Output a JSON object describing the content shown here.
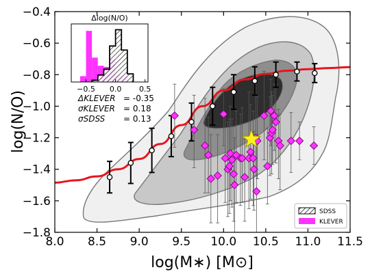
{
  "chart_data": {
    "type": "scatter",
    "xlabel": "log(M∗) [M⊙]",
    "ylabel": "log(N/O)",
    "xlim": [
      8.0,
      11.5
    ],
    "ylim": [
      -1.8,
      -0.4
    ],
    "xticks": [
      "8.0",
      "8.5",
      "9.0",
      "9.5",
      "10.0",
      "10.5",
      "11.0",
      "11.5"
    ],
    "yticks": [
      "−1.8",
      "−1.6",
      "−1.4",
      "−1.2",
      "−1.0",
      "−0.8",
      "−0.6",
      "−0.4"
    ],
    "grid": false,
    "colors": {
      "fit_line": "#e8141c",
      "klever": "#ff33ff",
      "contour_levels": [
        "#f0f0f0",
        "#c8c8c8",
        "#8e8e8e",
        "#2e2e2e"
      ],
      "star": "#ffee22"
    },
    "fit_curve": {
      "name": "",
      "x": [
        8.0,
        8.25,
        8.5,
        8.75,
        9.0,
        9.25,
        9.5,
        9.75,
        10.0,
        10.25,
        10.5,
        10.75,
        11.0,
        11.25,
        11.5
      ],
      "y": [
        -1.485,
        -1.47,
        -1.445,
        -1.4,
        -1.335,
        -1.24,
        -1.12,
        -1.0,
        -0.9,
        -0.83,
        -0.795,
        -0.775,
        -0.765,
        -0.758,
        -0.752
      ]
    },
    "sdss_median": {
      "name": "SDSS",
      "x": [
        8.65,
        8.9,
        9.15,
        9.38,
        9.62,
        9.87,
        10.12,
        10.37,
        10.62,
        10.87,
        11.08
      ],
      "y": [
        -1.45,
        -1.36,
        -1.28,
        -1.19,
        -1.1,
        -1.0,
        -0.91,
        -0.84,
        -0.8,
        -0.78,
        -0.79
      ],
      "err": [
        0.1,
        0.13,
        0.14,
        0.13,
        0.12,
        0.12,
        0.11,
        0.09,
        0.08,
        0.06,
        0.06
      ]
    },
    "klever_points": {
      "name": "KLEVER",
      "x": [
        9.42,
        9.65,
        9.78,
        9.82,
        9.85,
        9.93,
        10.0,
        10.02,
        10.05,
        10.07,
        10.08,
        10.1,
        10.12,
        10.13,
        10.15,
        10.2,
        10.22,
        10.25,
        10.3,
        10.32,
        10.35,
        10.36,
        10.38,
        10.39,
        10.4,
        10.48,
        10.52,
        10.55,
        10.56,
        10.57,
        10.58,
        10.6,
        10.62,
        10.65,
        10.67,
        10.8,
        10.9,
        11.07
      ],
      "y": [
        -1.06,
        -1.15,
        -1.25,
        -1.31,
        -1.46,
        -1.44,
        -1.05,
        -1.33,
        -1.4,
        -1.38,
        -1.3,
        -1.34,
        -1.43,
        -1.5,
        -1.31,
        -1.33,
        -1.33,
        -1.45,
        -1.33,
        -1.29,
        -1.33,
        -1.4,
        -1.2,
        -1.54,
        -1.22,
        -1.06,
        -1.38,
        -1.2,
        -1.03,
        -1.17,
        -1.15,
        -1.06,
        -1.1,
        -1.22,
        -1.25,
        -1.22,
        -1.22,
        -1.25
      ],
      "err_up": [
        0.2,
        0.22,
        0.3,
        0.24,
        0.28,
        0.26,
        0.16,
        0.28,
        0.3,
        0.3,
        0.3,
        0.26,
        0.3,
        0.3,
        0.28,
        0.28,
        0.32,
        0.24,
        0.42,
        0.3,
        0.3,
        0.24,
        0.36,
        0.36,
        0.28,
        0.28,
        0.24,
        0.26,
        0.2,
        0.26,
        0.22,
        0.2,
        0.24,
        0.2,
        0.2,
        0.18,
        0.12,
        0.12
      ],
      "err_down": [
        0.2,
        0.24,
        0.3,
        0.24,
        0.28,
        0.3,
        0.2,
        0.28,
        0.3,
        0.3,
        0.3,
        0.3,
        0.3,
        0.3,
        0.3,
        0.3,
        0.28,
        0.28,
        0.32,
        0.3,
        0.3,
        0.26,
        0.24,
        0.3,
        0.24,
        0.28,
        0.24,
        0.24,
        0.22,
        0.26,
        0.22,
        0.22,
        0.26,
        0.24,
        0.28,
        0.2,
        0.12,
        0.12
      ]
    },
    "stack_point": {
      "x": 10.33,
      "y": -1.21
    },
    "inset": {
      "title": "Δlog(N/O)",
      "xlim": [
        -0.75,
        0.55
      ],
      "xticks": [
        "−0.5",
        "0.0",
        "0.5"
      ],
      "sdss_hist": {
        "edges": [
          -0.4,
          -0.3,
          -0.2,
          -0.1,
          0.0,
          0.1,
          0.2,
          0.3
        ],
        "counts": [
          0.03,
          0.12,
          0.22,
          0.62,
          0.9,
          0.55,
          0.14
        ]
      },
      "klever_hist": {
        "edges": [
          -0.7,
          -0.6,
          -0.5,
          -0.4,
          -0.3,
          -0.2,
          -0.1,
          0.0,
          0.1,
          0.2,
          0.3
        ],
        "counts": [
          0.0,
          0.1,
          0.88,
          0.42,
          0.28,
          0.26,
          0.4,
          0.12,
          0.1,
          0.0
        ]
      },
      "stats": [
        {
          "label": "ΔKLEVER",
          "value": "= -0.35"
        },
        {
          "label": "σKLEVER",
          "value": "= 0.18"
        },
        {
          "label": "σSDSS",
          "value": "= 0.13"
        }
      ]
    },
    "legend": {
      "position": "lower-right",
      "entries": [
        {
          "label": "SDSS",
          "style": "hatched"
        },
        {
          "label": "KLEVER",
          "style": "filled"
        }
      ]
    }
  }
}
